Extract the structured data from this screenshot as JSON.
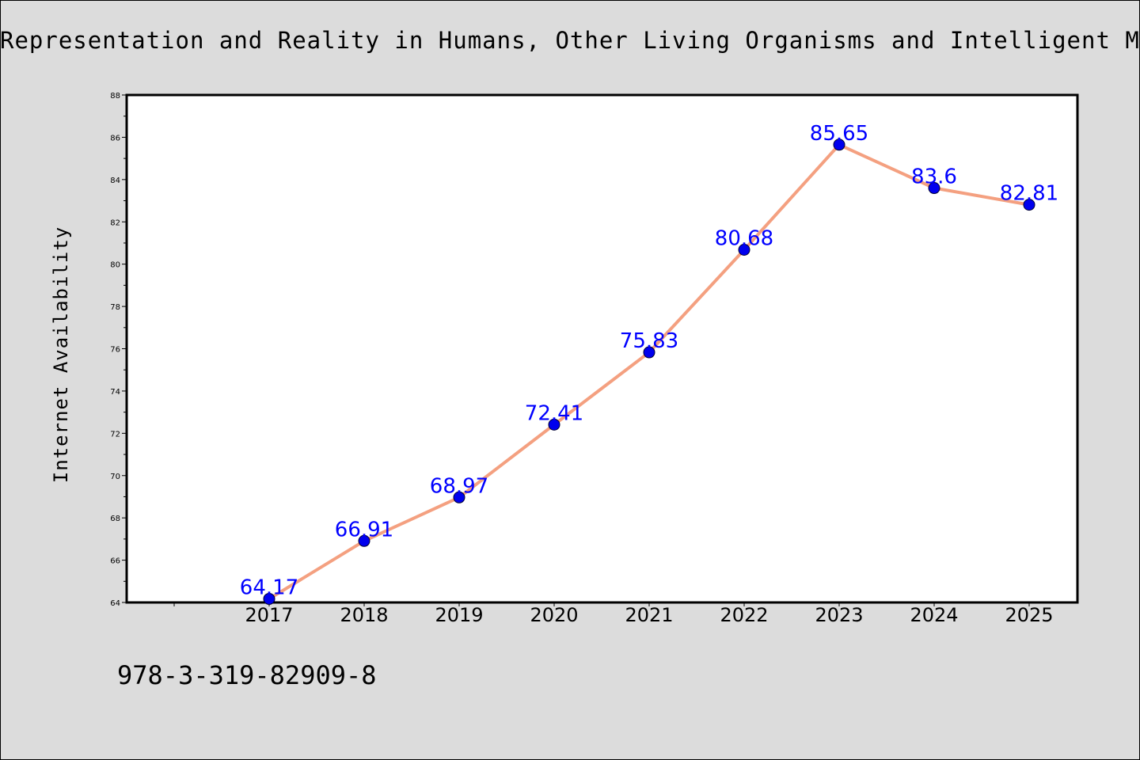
{
  "page": {
    "title": "Representation and Reality in Humans, Other Living Organisms and Intelligent Mac",
    "footer_isbn": "978-3-319-82909-8",
    "background": "#dcdcdc"
  },
  "chart_data": {
    "type": "line",
    "title": "Representation and Reality in Humans, Other Living Organisms and Intelligent Mac",
    "xlabel": "",
    "ylabel": "Internet Availability",
    "categories": [
      "2017",
      "2018",
      "2019",
      "2020",
      "2021",
      "2022",
      "2023",
      "2024",
      "2025"
    ],
    "series": [
      {
        "values": [
          64.17,
          66.91,
          68.97,
          72.41,
          75.83,
          80.68,
          85.65,
          83.6,
          82.81
        ],
        "labels": [
          "64.17",
          "66.91",
          "68.97",
          "72.41",
          "75.83",
          "80.68",
          "85.65",
          "83.6",
          "82.81"
        ],
        "line_color": "#f4a080",
        "marker_color": "#0000ee",
        "label_color": "#0000ff"
      }
    ],
    "ylim": [
      64,
      88
    ],
    "yticks": [
      "64",
      "66",
      "68",
      "70",
      "72",
      "74",
      "76",
      "78",
      "80",
      "82",
      "84",
      "86",
      "88"
    ],
    "grid": false,
    "legend": "none"
  }
}
